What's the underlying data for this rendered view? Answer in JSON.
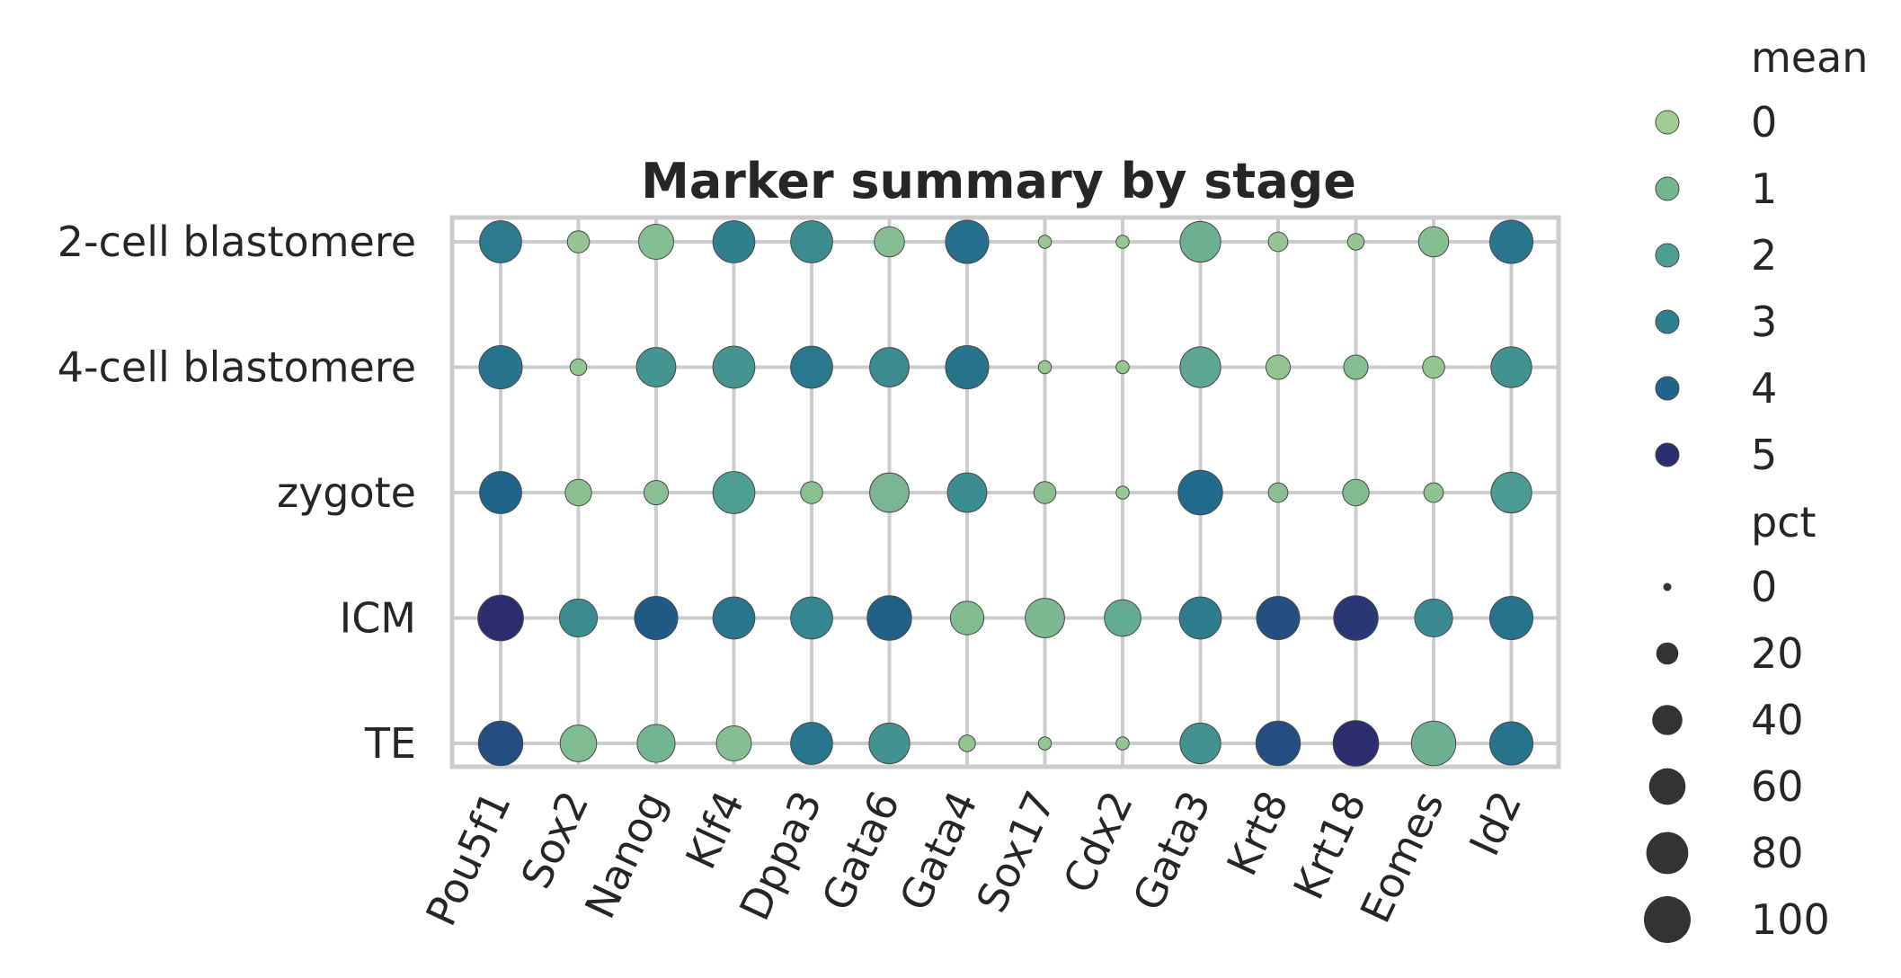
{
  "chart_data": {
    "type": "scatter",
    "title": "Marker summary by stage",
    "xlabel": "",
    "ylabel": "",
    "grid": true,
    "legend_placement": "right",
    "colormap": "crest",
    "genes": [
      "Pou5f1",
      "Sox2",
      "Nanog",
      "Klf4",
      "Dppa3",
      "Gata6",
      "Gata4",
      "Sox17",
      "Cdx2",
      "Gata3",
      "Krt8",
      "Krt18",
      "Eomes",
      "Id2"
    ],
    "stages": [
      "2-cell blastomere",
      "4-cell blastomere",
      "zygote",
      "ICM",
      "TE"
    ],
    "mean": [
      [
        3.2,
        0.3,
        0.6,
        3.0,
        2.6,
        0.6,
        3.6,
        0.2,
        0.2,
        1.2,
        0.3,
        0.3,
        0.6,
        3.4
      ],
      [
        3.5,
        0.3,
        2.3,
        2.3,
        3.3,
        2.6,
        3.5,
        0.2,
        0.2,
        1.6,
        0.3,
        0.6,
        0.3,
        2.4
      ],
      [
        4.0,
        0.5,
        0.5,
        2.0,
        0.5,
        0.9,
        2.6,
        0.5,
        0.2,
        3.8,
        0.5,
        0.7,
        0.4,
        2.1
      ],
      [
        5.0,
        2.6,
        4.2,
        3.4,
        2.8,
        4.1,
        0.7,
        0.8,
        1.4,
        3.1,
        4.4,
        4.8,
        2.7,
        3.5
      ],
      [
        4.4,
        0.7,
        1.0,
        0.6,
        3.4,
        2.4,
        0.3,
        0.3,
        0.3,
        2.4,
        4.4,
        5.0,
        1.2,
        3.5
      ]
    ],
    "pct": [
      [
        80,
        20,
        55,
        80,
        80,
        40,
        85,
        5,
        5,
        75,
        15,
        10,
        40,
        85
      ],
      [
        85,
        10,
        70,
        80,
        80,
        70,
        85,
        5,
        5,
        75,
        25,
        25,
        20,
        75
      ],
      [
        80,
        30,
        25,
        80,
        20,
        70,
        70,
        20,
        5,
        90,
        15,
        30,
        15,
        75
      ],
      [
        95,
        65,
        85,
        80,
        80,
        90,
        50,
        70,
        60,
        80,
        85,
        90,
        65,
        85
      ],
      [
        90,
        60,
        65,
        55,
        80,
        75,
        10,
        5,
        5,
        75,
        90,
        95,
        90,
        85
      ]
    ],
    "legend": {
      "mean_title": "mean",
      "mean_values": [
        "0",
        "1",
        "2",
        "3",
        "4",
        "5"
      ],
      "pct_title": "pct",
      "pct_values": [
        "0",
        "20",
        "40",
        "60",
        "80",
        "100"
      ]
    },
    "colors": {
      "grid": "#cccccc",
      "frame": "#cccccc",
      "marker_edge": "#4a4a4a",
      "size_legend": "#333333",
      "text": "#262626"
    },
    "mean_range": [
      0,
      5
    ],
    "pct_range": [
      0,
      100
    ]
  }
}
